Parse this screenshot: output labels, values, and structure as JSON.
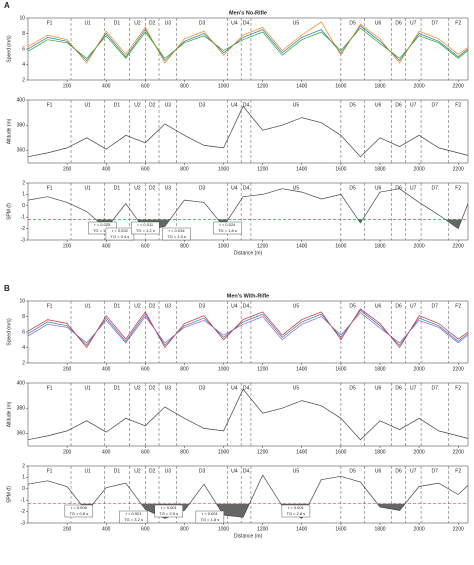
{
  "chart_data": [
    {
      "type": "line",
      "panel": "A",
      "title": "Men's No-Rifle",
      "ylabel": "Speed (m/s)",
      "x": [
        0,
        100,
        200,
        300,
        400,
        500,
        600,
        700,
        800,
        900,
        1000,
        1100,
        1200,
        1300,
        1400,
        1500,
        1600,
        1700,
        1800,
        1900,
        2000,
        2100,
        2200,
        2250
      ],
      "series": [
        {
          "color": "#1f77b4",
          "values": [
            6,
            7.5,
            7,
            4.5,
            8,
            5,
            8.5,
            4.5,
            7,
            8,
            5.5,
            7.5,
            8.5,
            5.5,
            7.5,
            8.5,
            5.5,
            9,
            7,
            4.5,
            8,
            7,
            5,
            6
          ]
        },
        {
          "color": "#ff7f0e",
          "values": [
            6.3,
            7.8,
            7.2,
            4.2,
            8.3,
            5.3,
            8.8,
            4.2,
            7.3,
            8.3,
            5.2,
            7.8,
            8.8,
            5.8,
            7.8,
            9.5,
            5.2,
            9.2,
            7.3,
            4.2,
            8.3,
            7.3,
            5.3,
            6.2
          ]
        },
        {
          "color": "#2ca02c",
          "values": [
            5.7,
            7.2,
            6.8,
            4.8,
            7.7,
            4.8,
            8.2,
            4.8,
            6.8,
            7.7,
            5.8,
            7.2,
            8.2,
            5.2,
            7.2,
            8.2,
            5.8,
            8.7,
            6.7,
            4.8,
            7.7,
            6.8,
            4.8,
            5.8
          ]
        }
      ],
      "xlim": [
        0,
        2250
      ],
      "xticks": [
        200,
        400,
        600,
        800,
        1000,
        1200,
        1400,
        1600,
        1800,
        2000,
        2200
      ],
      "ylim": [
        2,
        10
      ],
      "yticks": [
        2,
        4,
        6,
        8,
        10
      ],
      "section_labels": [
        "F1",
        "U1",
        "D1",
        "U2",
        "D2",
        "U3",
        "D3",
        "U4",
        "D4",
        "U5",
        "D5",
        "U6",
        "D6",
        "U7",
        "D7",
        "F2"
      ],
      "section_bounds": [
        220,
        390,
        520,
        600,
        670,
        760,
        1020,
        1090,
        1140,
        1600,
        1720,
        1860,
        1930,
        2010,
        2150
      ]
    },
    {
      "type": "line",
      "ylabel": "Altitude (m)",
      "x": [
        0,
        100,
        200,
        300,
        400,
        500,
        600,
        700,
        800,
        900,
        1000,
        1100,
        1200,
        1300,
        1400,
        1500,
        1600,
        1700,
        1800,
        1900,
        2000,
        2100,
        2200,
        2250
      ],
      "series": [
        {
          "color": "#444444",
          "values": [
            355,
            358,
            362,
            370,
            361,
            372,
            366,
            381,
            372,
            364,
            362,
            395,
            376,
            380,
            386,
            382,
            372,
            355,
            370,
            363,
            372,
            362,
            358,
            356
          ]
        }
      ],
      "xlim": [
        0,
        2250
      ],
      "xticks": [
        200,
        400,
        600,
        800,
        1000,
        1200,
        1400,
        1600,
        1800,
        2000,
        2200
      ],
      "ylim": [
        350,
        400
      ],
      "yticks": [
        360,
        380,
        400
      ],
      "section_labels": [
        "F1",
        "U1",
        "D1",
        "U2",
        "D2",
        "U3",
        "D3",
        "U4",
        "D4",
        "U5",
        "D5",
        "U6",
        "D6",
        "U7",
        "D7",
        "F2"
      ],
      "section_bounds": [
        220,
        390,
        520,
        600,
        670,
        760,
        1020,
        1090,
        1140,
        1600,
        1720,
        1860,
        1930,
        2010,
        2150
      ]
    },
    {
      "type": "spm",
      "ylabel": "SPM (f)",
      "xlabel": "Distance (m)",
      "x": [
        0,
        100,
        200,
        300,
        400,
        500,
        600,
        700,
        800,
        900,
        1000,
        1100,
        1200,
        1300,
        1400,
        1500,
        1600,
        1700,
        1800,
        1900,
        2000,
        2100,
        2200,
        2250
      ],
      "series": [
        {
          "color": "#444444",
          "values": [
            0.5,
            0.8,
            0.3,
            -0.5,
            -2,
            0.2,
            -2.2,
            -1.8,
            0.5,
            0.3,
            -1.8,
            0.8,
            1,
            1.5,
            1.2,
            0.6,
            1,
            -1.5,
            1.2,
            1.5,
            0.3,
            -0.8,
            -2,
            0.2
          ]
        }
      ],
      "threshold": -1.2,
      "xlim": [
        0,
        2250
      ],
      "xticks": [
        200,
        400,
        600,
        800,
        1000,
        1200,
        1400,
        1600,
        1800,
        2000,
        2200
      ],
      "ylim": [
        -3,
        2
      ],
      "yticks": [
        -3,
        -2,
        -1,
        0,
        1,
        2
      ],
      "section_labels": [
        "F1",
        "U1",
        "D1",
        "U2",
        "D2",
        "U3",
        "D3",
        "U4",
        "D4",
        "U5",
        "D5",
        "U6",
        "D6",
        "U7",
        "D7",
        "F2"
      ],
      "section_bounds": [
        220,
        390,
        520,
        600,
        670,
        760,
        1020,
        1090,
        1140,
        1600,
        1720,
        1860,
        1930,
        2010,
        2150
      ],
      "annotations": [
        [
          "r = 0.025",
          "TG = 1.7 s"
        ],
        [
          "r = 0.032",
          "TG = 3.4 s"
        ],
        [
          "r = 0.011",
          "TG = 1.2 s"
        ],
        [
          "r = 0.034",
          "TG = 1.5 s"
        ],
        [
          "r = 0.024",
          "TG = 1.8 s"
        ]
      ]
    },
    {
      "type": "line",
      "panel": "B",
      "title": "Men's With-Rifle",
      "ylabel": "Speed (m/s)",
      "x": [
        0,
        100,
        200,
        300,
        400,
        500,
        600,
        700,
        800,
        900,
        1000,
        1100,
        1200,
        1300,
        1400,
        1500,
        1600,
        1700,
        1800,
        1900,
        2000,
        2100,
        2200,
        2250
      ],
      "series": [
        {
          "color": "#1f77b4",
          "values": [
            5.8,
            7.3,
            6.8,
            4.3,
            7.8,
            4.8,
            8.3,
            4.3,
            6.8,
            7.8,
            5.3,
            7.3,
            8.3,
            5.3,
            7.3,
            8.3,
            5.3,
            8.8,
            6.8,
            4.3,
            7.8,
            6.8,
            4.8,
            5.8
          ]
        },
        {
          "color": "#d62728",
          "values": [
            6.1,
            7.6,
            7.1,
            4.0,
            8.1,
            5.1,
            8.6,
            4.0,
            7.1,
            8.1,
            5.0,
            7.6,
            8.6,
            5.6,
            7.6,
            8.6,
            5.0,
            9.0,
            7.1,
            4.0,
            8.1,
            7.1,
            5.1,
            6.0
          ]
        },
        {
          "color": "#9467bd",
          "values": [
            5.5,
            7.0,
            6.6,
            4.6,
            7.5,
            4.6,
            8.0,
            4.6,
            6.6,
            7.5,
            5.6,
            7.0,
            8.0,
            5.0,
            7.0,
            8.0,
            5.6,
            8.5,
            6.5,
            4.6,
            7.5,
            6.6,
            4.6,
            5.6
          ]
        }
      ],
      "xlim": [
        0,
        2250
      ],
      "xticks": [
        200,
        400,
        600,
        800,
        1000,
        1200,
        1400,
        1600,
        1800,
        2000,
        2200
      ],
      "ylim": [
        2,
        10
      ],
      "yticks": [
        2,
        4,
        6,
        8,
        10
      ],
      "section_labels": [
        "F1",
        "U1",
        "D1",
        "U2",
        "D2",
        "U3",
        "D3",
        "U4",
        "D4",
        "U5",
        "D5",
        "U6",
        "D6",
        "U7",
        "D7",
        "F2"
      ],
      "section_bounds": [
        220,
        390,
        520,
        600,
        670,
        760,
        1020,
        1090,
        1140,
        1600,
        1720,
        1860,
        1930,
        2010,
        2150
      ]
    },
    {
      "type": "line",
      "ylabel": "Altitude (m)",
      "x": [
        0,
        100,
        200,
        300,
        400,
        500,
        600,
        700,
        800,
        900,
        1000,
        1100,
        1200,
        1300,
        1400,
        1500,
        1600,
        1700,
        1800,
        1900,
        2000,
        2100,
        2200,
        2250
      ],
      "series": [
        {
          "color": "#444444",
          "values": [
            355,
            358,
            362,
            370,
            361,
            372,
            366,
            381,
            372,
            364,
            362,
            395,
            376,
            380,
            386,
            382,
            372,
            355,
            370,
            363,
            372,
            362,
            358,
            356
          ]
        }
      ],
      "xlim": [
        0,
        2250
      ],
      "xticks": [
        200,
        400,
        600,
        800,
        1000,
        1200,
        1400,
        1600,
        1800,
        2000,
        2200
      ],
      "ylim": [
        350,
        400
      ],
      "yticks": [
        360,
        380,
        400
      ],
      "section_labels": [
        "F1",
        "U1",
        "D1",
        "U2",
        "D2",
        "U3",
        "D3",
        "U4",
        "D4",
        "U5",
        "D5",
        "U6",
        "D6",
        "U7",
        "D7",
        "F2"
      ],
      "section_bounds": [
        220,
        390,
        520,
        600,
        670,
        760,
        1020,
        1090,
        1140,
        1600,
        1720,
        1860,
        1930,
        2010,
        2150
      ]
    },
    {
      "type": "spm",
      "ylabel": "SPM (f)",
      "xlabel": "Distance (m)",
      "x": [
        0,
        100,
        200,
        300,
        400,
        500,
        600,
        700,
        800,
        900,
        1000,
        1100,
        1200,
        1300,
        1400,
        1500,
        1600,
        1700,
        1800,
        1900,
        2000,
        2100,
        2200,
        2250
      ],
      "series": [
        {
          "color": "#444444",
          "values": [
            0.4,
            0.7,
            0.2,
            -2,
            0.1,
            0.5,
            -1.8,
            -2.6,
            -1.9,
            0.4,
            -2.3,
            -2.5,
            1.2,
            -1.5,
            -2.6,
            0.8,
            1.1,
            0.6,
            -1.6,
            -1.9,
            0.2,
            0.5,
            -0.5,
            0.3
          ]
        }
      ],
      "threshold": -1.3,
      "xlim": [
        0,
        2250
      ],
      "xticks": [
        200,
        400,
        600,
        800,
        1000,
        1200,
        1400,
        1600,
        1800,
        2000,
        2200
      ],
      "ylim": [
        -3,
        2
      ],
      "yticks": [
        -3,
        -2,
        -1,
        0,
        1,
        2
      ],
      "section_labels": [
        "F1",
        "U1",
        "D1",
        "U2",
        "D2",
        "U3",
        "D3",
        "U4",
        "D4",
        "U5",
        "D5",
        "U6",
        "D6",
        "U7",
        "D7",
        "F2"
      ],
      "section_bounds": [
        220,
        390,
        520,
        600,
        670,
        760,
        1020,
        1090,
        1140,
        1600,
        1720,
        1860,
        1930,
        2010,
        2150
      ],
      "annotations": [
        [
          "r = 0.006",
          "TG = 0.8 s"
        ],
        [
          "r = 0.001",
          "TG = 3.2 s"
        ],
        [
          "r = 0.001",
          "TG = 2.5 s"
        ],
        [
          "r = 0.001",
          "TG = 1.8 s"
        ],
        [
          "r = 0.001",
          "TG = 2.8 s"
        ]
      ]
    }
  ]
}
